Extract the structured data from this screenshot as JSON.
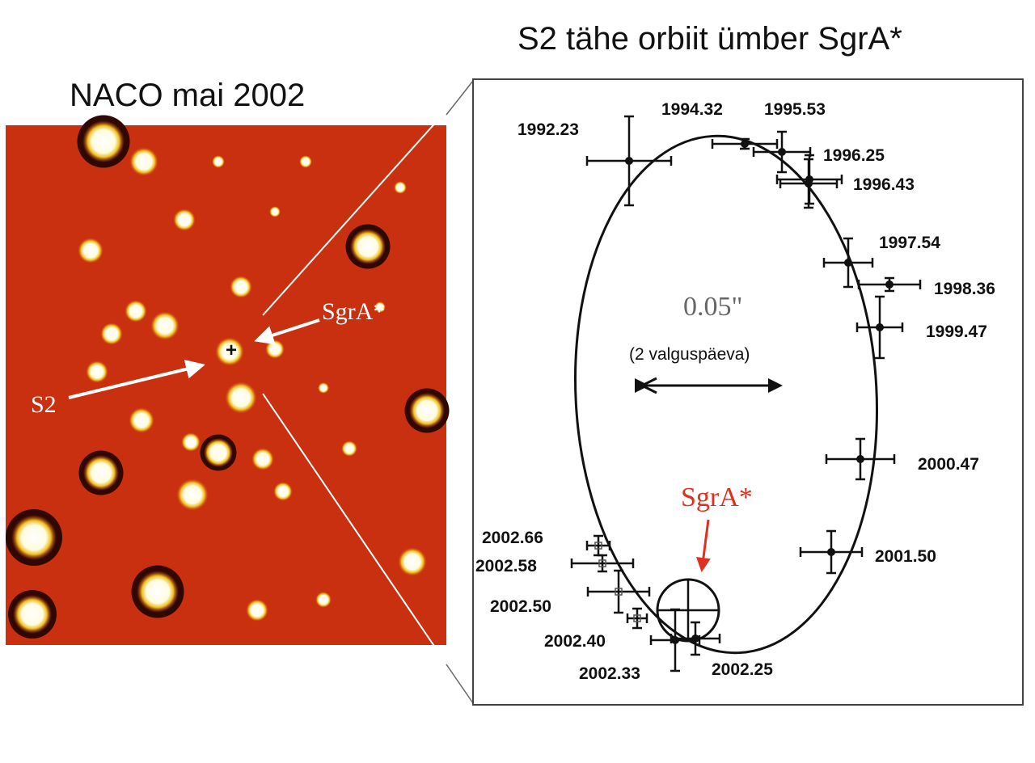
{
  "left_panel": {
    "title": "NACO mai 2002",
    "labels": {
      "sgra": "SgrA*",
      "s2": "S2"
    },
    "background_color": "#c8300f"
  },
  "right_panel": {
    "title": "S2 tähe orbiit ümber SgrA*",
    "scale_value": "0.05\"",
    "scale_note": "(2 valguspäeva)",
    "sgra_label": "SgrA*",
    "sgra_color": "#e03020",
    "epochs": [
      "1992.23",
      "1994.32",
      "1995.53",
      "1996.25",
      "1996.43",
      "1997.54",
      "1998.36",
      "1999.47",
      "2000.47",
      "2001.50",
      "2002.25",
      "2002.33",
      "2002.40",
      "2002.50",
      "2002.58",
      "2002.66"
    ]
  }
}
